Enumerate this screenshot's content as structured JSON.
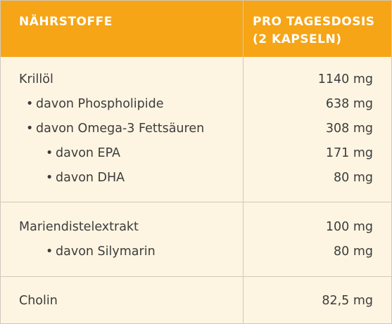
{
  "header": {
    "col1": "NÄHRSTOFFE",
    "col2_line1": "PRO TAGESDOSIS",
    "col2_line2": "(2 KAPSELN)"
  },
  "bullet": "•",
  "rows": [
    {
      "label": "Krillöl",
      "value": "1140 mg"
    },
    {
      "label": "davon Phospholipide",
      "value": "638 mg"
    },
    {
      "label": "davon Omega-3 Fettsäuren",
      "value": "308 mg"
    },
    {
      "label": "davon EPA",
      "value": "171 mg"
    },
    {
      "label": "davon DHA",
      "value": "80 mg"
    },
    {
      "label": "Mariendistelextrakt",
      "value": "100 mg"
    },
    {
      "label": "davon Silymarin",
      "value": "80 mg"
    },
    {
      "label": "Cholin",
      "value": "82,5 mg"
    }
  ]
}
